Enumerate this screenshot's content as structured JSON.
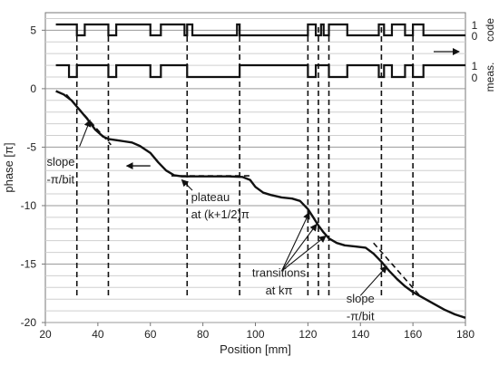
{
  "chart_data": {
    "type": "line",
    "xlabel": "Position [mm]",
    "ylabel": "phase [π]",
    "xlim": [
      20,
      180
    ],
    "ylim": [
      -20,
      6.5
    ],
    "xticks": [
      20,
      40,
      60,
      80,
      100,
      120,
      140,
      160,
      180
    ],
    "yticks": [
      -20,
      -15,
      -10,
      -5,
      0,
      5
    ],
    "grid": "horizontal",
    "phase_curve": {
      "x": [
        24,
        27,
        30,
        33,
        36,
        39,
        42,
        44,
        47,
        50,
        53,
        56,
        60,
        63,
        66,
        69,
        72,
        75,
        80,
        85,
        90,
        95,
        98,
        100,
        103,
        106,
        110,
        114,
        117,
        120,
        122,
        124,
        126,
        128,
        131,
        134,
        138,
        142,
        145,
        148,
        151,
        154,
        157,
        160,
        164,
        168,
        172,
        176,
        180
      ],
      "y": [
        -0.2,
        -0.5,
        -1.0,
        -1.8,
        -2.6,
        -3.5,
        -4.1,
        -4.3,
        -4.4,
        -4.5,
        -4.6,
        -4.9,
        -5.5,
        -6.3,
        -7.0,
        -7.4,
        -7.5,
        -7.5,
        -7.5,
        -7.5,
        -7.5,
        -7.55,
        -7.8,
        -8.4,
        -8.9,
        -9.1,
        -9.3,
        -9.4,
        -9.6,
        -10.3,
        -11.0,
        -11.7,
        -12.3,
        -12.8,
        -13.2,
        -13.4,
        -13.5,
        -13.6,
        -14.1,
        -14.8,
        -15.6,
        -16.3,
        -16.9,
        -17.4,
        -17.9,
        -18.4,
        -18.9,
        -19.3,
        -19.6
      ]
    },
    "code_levels": [
      "1",
      "0"
    ],
    "code_series": [
      {
        "name": "code",
        "label_id": "code",
        "transitions": [
          24,
          32,
          35,
          44,
          47,
          60,
          64,
          73,
          74,
          76,
          93,
          94,
          120,
          123,
          125,
          126,
          128,
          135,
          147,
          149,
          152,
          157,
          160,
          164,
          180
        ],
        "start_level": 1
      },
      {
        "name": "meas.",
        "label_id": "meas",
        "transitions": [
          24,
          29,
          32,
          44,
          47,
          60,
          64,
          74,
          94,
          120,
          123,
          128,
          135,
          147,
          149,
          152,
          157,
          160,
          164,
          180
        ],
        "start_level": 1
      }
    ],
    "guide_lines_x": [
      32,
      44,
      74,
      94,
      120,
      124,
      128,
      148,
      160
    ],
    "annotations": {
      "slope1_line1": "slope",
      "slope1_line2": "-π/bit",
      "plateau_line1": "plateau",
      "plateau_line2": "at (k+1/2)π",
      "transitions_line1": "transitions",
      "transitions_line2": "at kπ",
      "slope2_line1": "slope",
      "slope2_line2": "-π/bit"
    }
  }
}
